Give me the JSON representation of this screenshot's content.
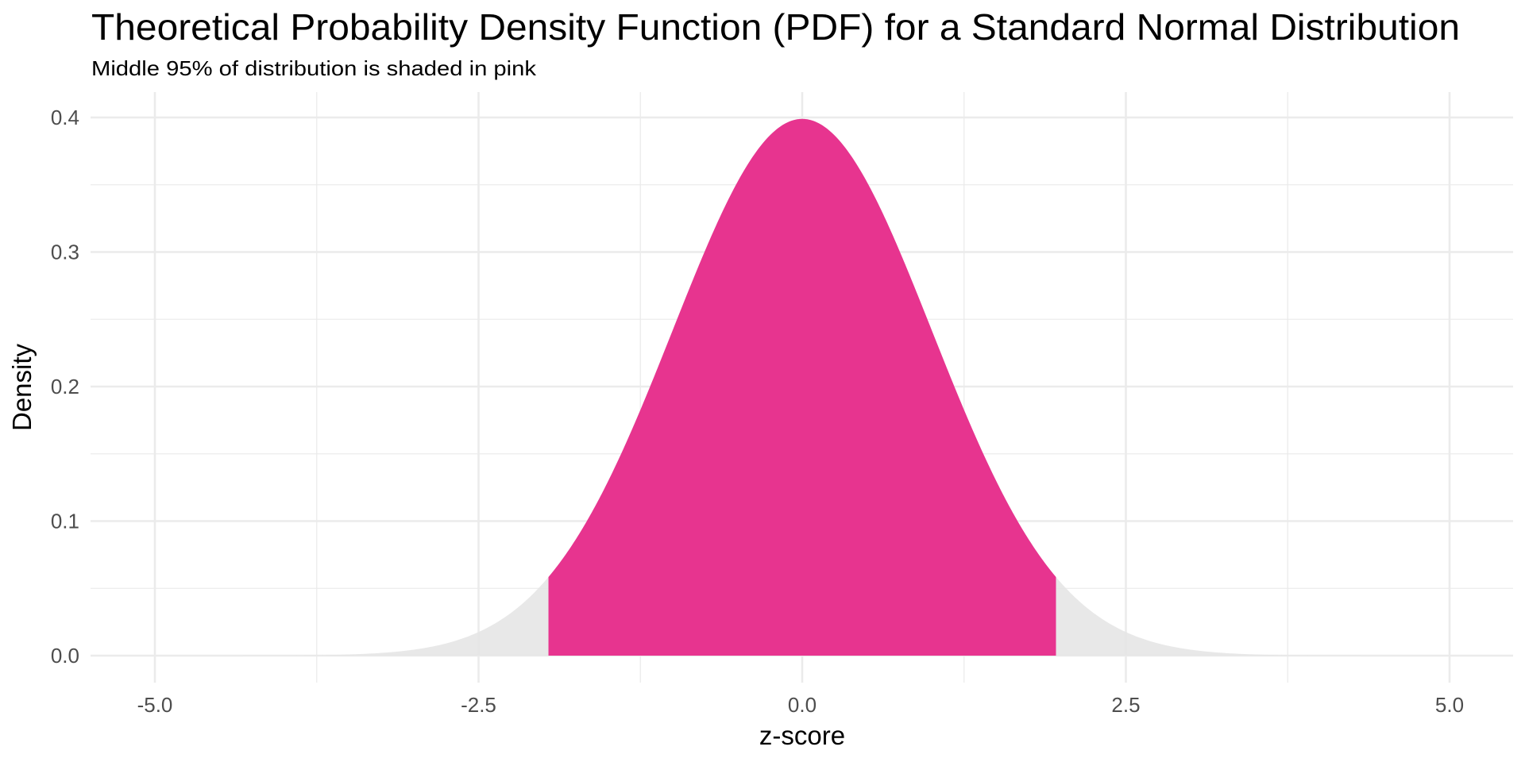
{
  "chart_data": {
    "type": "area",
    "title": "Theoretical Probability Density Function (PDF) for a Standard Normal Distribution",
    "subtitle": "Middle 95% of distribution is shaded in pink",
    "xlabel": "z-score",
    "ylabel": "Density",
    "xlim": [
      -5.5,
      5.5
    ],
    "ylim": [
      0,
      0.4
    ],
    "x_ticks": [
      -5.0,
      -2.5,
      0.0,
      2.5,
      5.0
    ],
    "x_tick_labels": [
      "-5.0",
      "-2.5",
      "0.0",
      "2.5",
      "5.0"
    ],
    "x_minor_ticks": [
      -3.75,
      -1.25,
      1.25,
      3.75
    ],
    "y_ticks": [
      0.0,
      0.1,
      0.2,
      0.3,
      0.4
    ],
    "y_tick_labels": [
      "0.0",
      "0.1",
      "0.2",
      "0.3",
      "0.4"
    ],
    "y_minor_ticks": [
      0.05,
      0.15,
      0.25,
      0.35
    ],
    "grid": true,
    "legend": "none",
    "distribution": {
      "name": "standard normal",
      "mean": 0,
      "sd": 1,
      "x_range": [
        -5,
        5
      ]
    },
    "series": [
      {
        "name": "tails",
        "from": -5,
        "to": 5,
        "color": "#e6e6e6"
      },
      {
        "name": "middle 95%",
        "from": -1.96,
        "to": 1.96,
        "color": "#e7348f"
      }
    ],
    "sample_points": {
      "x": [
        -5,
        -4,
        -3,
        -2.5,
        -1.96,
        -1,
        0,
        1,
        1.96,
        2.5,
        3,
        4,
        5
      ],
      "y": [
        1.5e-06,
        0.000134,
        0.00443,
        0.0175,
        0.0584,
        0.242,
        0.3989,
        0.242,
        0.0584,
        0.0175,
        0.00443,
        0.000134,
        1.5e-06
      ]
    }
  },
  "colors": {
    "highlight": "#e7348f",
    "tail": "#e6e6e6",
    "grid": "#ebebeb",
    "tick_text": "#4d4d4d",
    "text": "#000000"
  }
}
